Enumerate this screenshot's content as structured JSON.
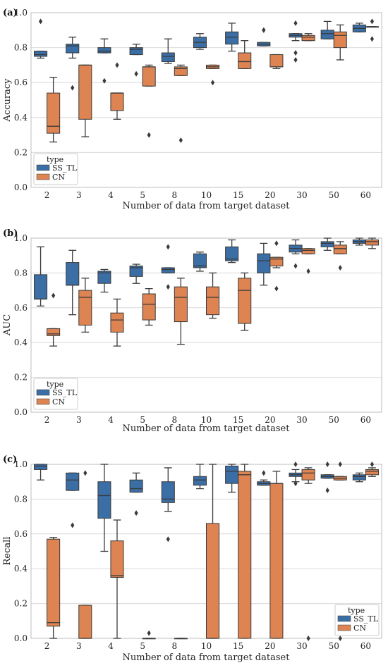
{
  "colors": {
    "SS_TL": "#3a6ea5",
    "CN": "#dd8452"
  },
  "chart_data": [
    {
      "type": "box",
      "panel_label": "(a)",
      "xlabel": "Number of data from target dataset",
      "ylabel": "Accuracy",
      "ylim": [
        0,
        1
      ],
      "yticks": [
        "0.0",
        "0.2",
        "0.4",
        "0.6",
        "0.8",
        "1.0"
      ],
      "categories": [
        "2",
        "3",
        "4",
        "5",
        "8",
        "10",
        "15",
        "20",
        "30",
        "50",
        "60"
      ],
      "legend": {
        "title": "type",
        "entries": [
          "SS_TL",
          "CN"
        ],
        "position": "lower-left"
      },
      "grid": true,
      "series": [
        {
          "name": "SS_TL",
          "boxes": [
            {
              "min": 0.74,
              "q1": 0.75,
              "median": 0.76,
              "q3": 0.78,
              "max": 0.78,
              "fliers": [
                0.95
              ]
            },
            {
              "min": 0.74,
              "q1": 0.77,
              "median": 0.81,
              "q3": 0.82,
              "max": 0.86,
              "fliers": [
                0.57
              ]
            },
            {
              "min": 0.77,
              "q1": 0.77,
              "median": 0.78,
              "q3": 0.8,
              "max": 0.85,
              "fliers": [
                0.61
              ]
            },
            {
              "min": 0.76,
              "q1": 0.76,
              "median": 0.79,
              "q3": 0.8,
              "max": 0.82,
              "fliers": [
                0.65
              ]
            },
            {
              "min": 0.71,
              "q1": 0.72,
              "median": 0.75,
              "q3": 0.77,
              "max": 0.85,
              "fliers": []
            },
            {
              "min": 0.79,
              "q1": 0.8,
              "median": 0.83,
              "q3": 0.86,
              "max": 0.88,
              "fliers": []
            },
            {
              "min": 0.78,
              "q1": 0.82,
              "median": 0.86,
              "q3": 0.89,
              "max": 0.94,
              "fliers": []
            },
            {
              "min": 0.81,
              "q1": 0.81,
              "median": 0.82,
              "q3": 0.83,
              "max": 0.83,
              "fliers": [
                0.9,
                0.9
              ]
            },
            {
              "min": 0.84,
              "q1": 0.86,
              "median": 0.87,
              "q3": 0.88,
              "max": 0.88,
              "fliers": [
                0.94,
                0.73,
                0.77
              ]
            },
            {
              "min": 0.85,
              "q1": 0.85,
              "median": 0.88,
              "q3": 0.9,
              "max": 0.95,
              "fliers": []
            },
            {
              "min": 0.89,
              "q1": 0.89,
              "median": 0.91,
              "q3": 0.93,
              "max": 0.94,
              "fliers": []
            }
          ]
        },
        {
          "name": "CN",
          "boxes": [
            {
              "min": 0.26,
              "q1": 0.31,
              "median": 0.35,
              "q3": 0.54,
              "max": 0.63,
              "fliers": []
            },
            {
              "min": 0.29,
              "q1": 0.39,
              "median": 0.7,
              "q3": 0.7,
              "max": 0.7,
              "fliers": []
            },
            {
              "min": 0.39,
              "q1": 0.44,
              "median": 0.54,
              "q3": 0.54,
              "max": 0.54,
              "fliers": [
                0.7
              ]
            },
            {
              "min": 0.58,
              "q1": 0.58,
              "median": 0.69,
              "q3": 0.69,
              "max": 0.7,
              "fliers": [
                0.3
              ]
            },
            {
              "min": 0.64,
              "q1": 0.64,
              "median": 0.68,
              "q3": 0.69,
              "max": 0.7,
              "fliers": [
                0.27
              ]
            },
            {
              "min": 0.68,
              "q1": 0.68,
              "median": 0.69,
              "q3": 0.7,
              "max": 0.7,
              "fliers": [
                0.6
              ]
            },
            {
              "min": 0.68,
              "q1": 0.68,
              "median": 0.72,
              "q3": 0.77,
              "max": 0.84,
              "fliers": []
            },
            {
              "min": 0.68,
              "q1": 0.69,
              "median": 0.69,
              "q3": 0.76,
              "max": 0.76,
              "fliers": []
            },
            {
              "min": 0.84,
              "q1": 0.84,
              "median": 0.86,
              "q3": 0.87,
              "max": 0.88,
              "fliers": []
            },
            {
              "min": 0.73,
              "q1": 0.8,
              "median": 0.87,
              "q3": 0.89,
              "max": 0.93,
              "fliers": []
            },
            {
              "min": 0.92,
              "q1": 0.92,
              "median": 0.92,
              "q3": 0.92,
              "max": 0.92,
              "fliers": [
                0.95,
                0.85
              ]
            }
          ]
        }
      ]
    },
    {
      "type": "box",
      "panel_label": "(b)",
      "xlabel": "Number of data from target dataset",
      "ylabel": "AUC",
      "ylim": [
        0,
        1
      ],
      "yticks": [
        "0.0",
        "0.2",
        "0.4",
        "0.6",
        "0.8",
        "1.0"
      ],
      "categories": [
        "2",
        "3",
        "4",
        "5",
        "8",
        "10",
        "15",
        "20",
        "30",
        "50",
        "60"
      ],
      "legend": {
        "title": "type",
        "entries": [
          "SS_TL",
          "CN"
        ],
        "position": "lower-left"
      },
      "grid": true,
      "series": [
        {
          "name": "SS_TL",
          "boxes": [
            {
              "min": 0.61,
              "q1": 0.65,
              "median": 0.65,
              "q3": 0.79,
              "max": 0.95,
              "fliers": []
            },
            {
              "min": 0.56,
              "q1": 0.73,
              "median": 0.73,
              "q3": 0.86,
              "max": 0.93,
              "fliers": []
            },
            {
              "min": 0.69,
              "q1": 0.74,
              "median": 0.8,
              "q3": 0.81,
              "max": 0.82,
              "fliers": []
            },
            {
              "min": 0.74,
              "q1": 0.78,
              "median": 0.83,
              "q3": 0.84,
              "max": 0.85,
              "fliers": []
            },
            {
              "min": 0.8,
              "q1": 0.8,
              "median": 0.82,
              "q3": 0.83,
              "max": 0.83,
              "fliers": [
                0.95,
                0.72
              ]
            },
            {
              "min": 0.81,
              "q1": 0.83,
              "median": 0.84,
              "q3": 0.91,
              "max": 0.92,
              "fliers": []
            },
            {
              "min": 0.86,
              "q1": 0.87,
              "median": 0.88,
              "q3": 0.95,
              "max": 0.99,
              "fliers": []
            },
            {
              "min": 0.73,
              "q1": 0.8,
              "median": 0.87,
              "q3": 0.91,
              "max": 0.97,
              "fliers": []
            },
            {
              "min": 0.91,
              "q1": 0.92,
              "median": 0.94,
              "q3": 0.96,
              "max": 0.99,
              "fliers": [
                0.84
              ]
            },
            {
              "min": 0.93,
              "q1": 0.95,
              "median": 0.97,
              "q3": 0.98,
              "max": 1.0,
              "fliers": []
            },
            {
              "min": 0.96,
              "q1": 0.97,
              "median": 0.98,
              "q3": 0.99,
              "max": 1.0,
              "fliers": []
            }
          ]
        },
        {
          "name": "CN",
          "boxes": [
            {
              "min": 0.38,
              "q1": 0.44,
              "median": 0.45,
              "q3": 0.48,
              "max": 0.48,
              "fliers": [
                0.67
              ]
            },
            {
              "min": 0.46,
              "q1": 0.5,
              "median": 0.66,
              "q3": 0.7,
              "max": 0.77,
              "fliers": []
            },
            {
              "min": 0.38,
              "q1": 0.46,
              "median": 0.53,
              "q3": 0.57,
              "max": 0.65,
              "fliers": []
            },
            {
              "min": 0.5,
              "q1": 0.53,
              "median": 0.62,
              "q3": 0.68,
              "max": 0.71,
              "fliers": []
            },
            {
              "min": 0.39,
              "q1": 0.52,
              "median": 0.66,
              "q3": 0.72,
              "max": 0.77,
              "fliers": []
            },
            {
              "min": 0.54,
              "q1": 0.56,
              "median": 0.66,
              "q3": 0.72,
              "max": 0.8,
              "fliers": []
            },
            {
              "min": 0.47,
              "q1": 0.51,
              "median": 0.7,
              "q3": 0.77,
              "max": 0.8,
              "fliers": []
            },
            {
              "min": 0.83,
              "q1": 0.84,
              "median": 0.88,
              "q3": 0.89,
              "max": 0.89,
              "fliers": [
                0.97,
                0.71
              ]
            },
            {
              "min": 0.91,
              "q1": 0.91,
              "median": 0.93,
              "q3": 0.94,
              "max": 0.94,
              "fliers": [
                0.81
              ]
            },
            {
              "min": 0.91,
              "q1": 0.91,
              "median": 0.94,
              "q3": 0.96,
              "max": 0.98,
              "fliers": [
                0.83
              ]
            },
            {
              "min": 0.94,
              "q1": 0.96,
              "median": 0.98,
              "q3": 0.99,
              "max": 1.0,
              "fliers": []
            }
          ]
        }
      ]
    },
    {
      "type": "box",
      "panel_label": "(c)",
      "xlabel": "Number of data from target dataset",
      "ylabel": "Recall",
      "ylim": [
        0,
        1
      ],
      "yticks": [
        "0.0",
        "0.2",
        "0.4",
        "0.6",
        "0.8",
        "1.0"
      ],
      "categories": [
        "2",
        "3",
        "4",
        "5",
        "8",
        "10",
        "15",
        "20",
        "30",
        "50",
        "60"
      ],
      "legend": {
        "title": "type",
        "entries": [
          "SS_TL",
          "CN"
        ],
        "position": "lower-right"
      },
      "grid": true,
      "series": [
        {
          "name": "SS_TL",
          "boxes": [
            {
              "min": 0.91,
              "q1": 0.97,
              "median": 0.99,
              "q3": 1.0,
              "max": 1.0,
              "fliers": []
            },
            {
              "min": 0.85,
              "q1": 0.85,
              "median": 0.91,
              "q3": 0.95,
              "max": 0.95,
              "fliers": [
                0.65
              ]
            },
            {
              "min": 0.5,
              "q1": 0.69,
              "median": 0.82,
              "q3": 0.9,
              "max": 1.0,
              "fliers": []
            },
            {
              "min": 0.84,
              "q1": 0.84,
              "median": 0.86,
              "q3": 0.91,
              "max": 0.95,
              "fliers": [
                0.72
              ]
            },
            {
              "min": 0.73,
              "q1": 0.78,
              "median": 0.8,
              "q3": 0.9,
              "max": 0.98,
              "fliers": [
                0.57
              ]
            },
            {
              "min": 0.86,
              "q1": 0.88,
              "median": 0.91,
              "q3": 0.93,
              "max": 1.0,
              "fliers": []
            },
            {
              "min": 0.84,
              "q1": 0.89,
              "median": 0.96,
              "q3": 0.99,
              "max": 1.0,
              "fliers": []
            },
            {
              "min": 0.88,
              "q1": 0.88,
              "median": 0.89,
              "q3": 0.9,
              "max": 0.91,
              "fliers": [
                0.95
              ]
            },
            {
              "min": 0.9,
              "q1": 0.93,
              "median": 0.94,
              "q3": 0.95,
              "max": 0.97,
              "fliers": [
                1.0,
                0.89
              ]
            },
            {
              "min": 0.92,
              "q1": 0.92,
              "median": 0.93,
              "q3": 0.94,
              "max": 0.94,
              "fliers": [
                1.0,
                0.85
              ]
            },
            {
              "min": 0.9,
              "q1": 0.91,
              "median": 0.93,
              "q3": 0.94,
              "max": 0.95,
              "fliers": []
            }
          ]
        },
        {
          "name": "CN",
          "boxes": [
            {
              "min": 0.0,
              "q1": 0.07,
              "median": 0.09,
              "q3": 0.57,
              "max": 0.58,
              "fliers": []
            },
            {
              "min": 0.0,
              "q1": 0.0,
              "median": 0.0,
              "q3": 0.19,
              "max": 0.19,
              "fliers": [
                0.95
              ]
            },
            {
              "min": 0.0,
              "q1": 0.35,
              "median": 0.36,
              "q3": 0.56,
              "max": 0.68,
              "fliers": []
            },
            {
              "min": 0.0,
              "q1": 0.0,
              "median": 0.0,
              "q3": 0.0,
              "max": 0.0,
              "fliers": [
                0.03
              ]
            },
            {
              "min": 0.0,
              "q1": 0.0,
              "median": 0.0,
              "q3": 0.0,
              "max": 0.0,
              "fliers": []
            },
            {
              "min": 0.0,
              "q1": 0.0,
              "median": 0.0,
              "q3": 0.66,
              "max": 1.0,
              "fliers": []
            },
            {
              "min": 0.0,
              "q1": 0.0,
              "median": 0.94,
              "q3": 0.96,
              "max": 1.0,
              "fliers": []
            },
            {
              "min": 0.0,
              "q1": 0.0,
              "median": 0.89,
              "q3": 0.89,
              "max": 0.96,
              "fliers": []
            },
            {
              "min": 0.89,
              "q1": 0.91,
              "median": 0.95,
              "q3": 0.97,
              "max": 0.98,
              "fliers": [
                0.0
              ]
            },
            {
              "min": 0.91,
              "q1": 0.91,
              "median": 0.92,
              "q3": 0.93,
              "max": 0.93,
              "fliers": [
                1.0,
                0.0
              ]
            },
            {
              "min": 0.93,
              "q1": 0.94,
              "median": 0.96,
              "q3": 0.97,
              "max": 0.98,
              "fliers": [
                1.0
              ]
            }
          ]
        }
      ]
    }
  ]
}
